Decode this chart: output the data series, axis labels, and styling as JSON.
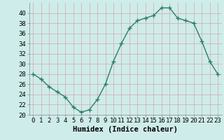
{
  "x": [
    0,
    1,
    2,
    3,
    4,
    5,
    6,
    7,
    8,
    9,
    10,
    11,
    12,
    13,
    14,
    15,
    16,
    17,
    18,
    19,
    20,
    21,
    22,
    23
  ],
  "y": [
    28,
    27,
    25.5,
    24.5,
    23.5,
    21.5,
    20.5,
    21,
    23,
    26,
    30.5,
    34,
    37,
    38.5,
    39,
    39.5,
    41,
    41,
    39,
    38.5,
    38,
    34.5,
    30.5,
    28
  ],
  "line_color": "#2e7d6b",
  "marker_color": "#2e7d6b",
  "bg_color": "#ceecea",
  "grid_color": "#b8dbd9",
  "xlabel": "Humidex (Indice chaleur)",
  "ylim": [
    20,
    42
  ],
  "xlim": [
    -0.5,
    23.5
  ],
  "yticks": [
    20,
    22,
    24,
    26,
    28,
    30,
    32,
    34,
    36,
    38,
    40
  ],
  "xticks": [
    0,
    1,
    2,
    3,
    4,
    5,
    6,
    7,
    8,
    9,
    10,
    11,
    12,
    13,
    14,
    15,
    16,
    17,
    18,
    19,
    20,
    21,
    22,
    23
  ],
  "xtick_labels": [
    "0",
    "1",
    "2",
    "3",
    "4",
    "5",
    "6",
    "7",
    "8",
    "9",
    "10",
    "11",
    "12",
    "13",
    "14",
    "15",
    "16",
    "17",
    "18",
    "19",
    "20",
    "21",
    "22",
    "23"
  ],
  "xlabel_fontsize": 7.5,
  "tick_fontsize": 6.5,
  "line_width": 1.0,
  "marker_size": 2.5
}
